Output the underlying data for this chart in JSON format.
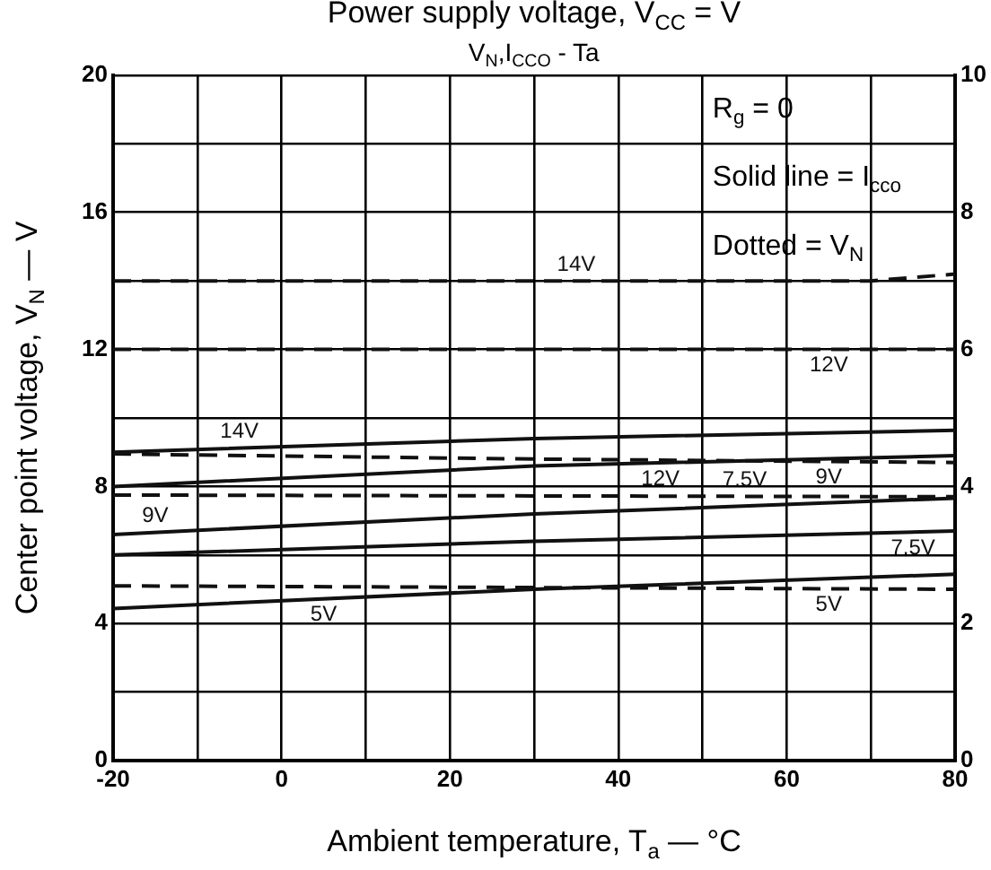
{
  "chart_data": {
    "type": "line",
    "title": "Power supply voltage, V$_{CC}$ = V",
    "subtitle": "V$_{N}$,I$_{CCO}$ - Ta",
    "xlabel": "Ambient temperature, T$_{a}$ — °C",
    "ylabel": "Center point voltage, V$_{N}$ — V",
    "xlim": [
      -20,
      80
    ],
    "xticks": [
      -20,
      {
        "value": -10,
        "label": null
      },
      0,
      {
        "value": 10,
        "label": null
      },
      20,
      {
        "value": 30,
        "label": null
      },
      40,
      {
        "value": 50,
        "label": null
      },
      60,
      {
        "value": 70,
        "label": null
      },
      80
    ],
    "ylim": [
      0,
      20
    ],
    "yticks": [
      0,
      {
        "value": 2,
        "label": null
      },
      4,
      {
        "value": 6,
        "label": null
      },
      8,
      {
        "value": 10,
        "label": null
      },
      12,
      {
        "value": 14,
        "label": null
      },
      16,
      {
        "value": 18,
        "label": null
      },
      20
    ],
    "y2lim": [
      0,
      10
    ],
    "y2ticks": [
      0,
      2,
      4,
      6,
      8,
      10
    ],
    "grid": true,
    "marker": "none",
    "series": [
      {
        "name": "14V",
        "color": "#111111",
        "axis": "y2",
        "line_style": "solid",
        "x": [
          -20,
          30,
          80
        ],
        "values": [
          4.5,
          4.7,
          4.82
        ]
      },
      {
        "name": "12V",
        "color": "#111111",
        "axis": "y2",
        "line_style": "solid",
        "x": [
          -20,
          30,
          80
        ],
        "values": [
          4.0,
          4.3,
          4.45
        ]
      },
      {
        "name": "9V",
        "color": "#111111",
        "axis": "y2",
        "line_style": "solid",
        "x": [
          -20,
          30,
          80
        ],
        "values": [
          3.3,
          3.6,
          3.83
        ]
      },
      {
        "name": "7.5V",
        "color": "#111111",
        "axis": "y2",
        "line_style": "solid",
        "x": [
          -20,
          30,
          80
        ],
        "values": [
          3.0,
          3.2,
          3.35
        ]
      },
      {
        "name": "5V",
        "color": "#111111",
        "axis": "y2",
        "line_style": "solid",
        "x": [
          -20,
          30,
          80
        ],
        "values": [
          2.22,
          2.5,
          2.72
        ]
      },
      {
        "name": "14V",
        "color": "#111111",
        "line_style": "dashed",
        "x": [
          -20,
          70,
          80
        ],
        "values": [
          14,
          14,
          14.2
        ]
      },
      {
        "name": "12V",
        "color": "#111111",
        "line_style": "dashed",
        "x": [
          -20,
          80
        ],
        "values": [
          12,
          12
        ]
      },
      {
        "name": "9V",
        "color": "#111111",
        "line_style": "dashed",
        "x": [
          -20,
          30,
          80
        ],
        "values": [
          8.95,
          8.8,
          8.7
        ]
      },
      {
        "name": "7.5V",
        "color": "#111111",
        "line_style": "dashed",
        "x": [
          -20,
          80
        ],
        "values": [
          7.75,
          7.7
        ]
      },
      {
        "name": "5V",
        "color": "#111111",
        "line_style": "dashed",
        "x": [
          -20,
          80
        ],
        "values": [
          5.1,
          5.0
        ]
      }
    ],
    "annotations": [
      "R$_{g}$ = 0",
      "Solid line = I$_{cco}$",
      "Dotted = V$_{N}$"
    ]
  }
}
